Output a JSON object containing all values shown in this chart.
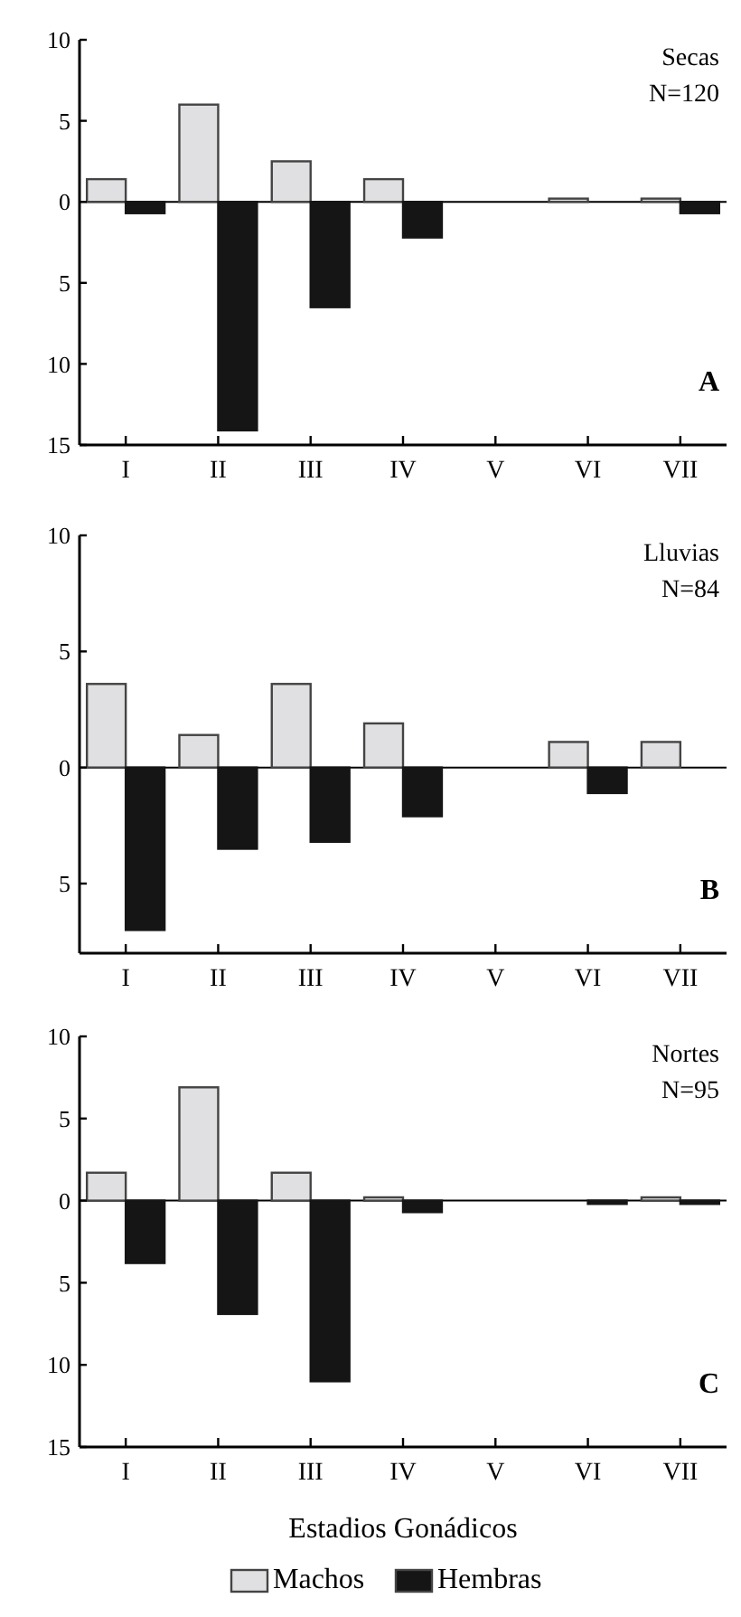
{
  "chart_data": [
    {
      "type": "bar",
      "categories": [
        "I",
        "II",
        "III",
        "IV",
        "V",
        "VI",
        "VII"
      ],
      "series": [
        {
          "color": "#e0e0e2",
          "values": [
            1.4,
            6,
            2.5,
            1.4,
            0,
            0.2,
            0.2
          ]
        },
        {
          "color": "#151515",
          "values": [
            -0.7,
            -14.1,
            -6.5,
            -2.2,
            0,
            0,
            -0.7
          ]
        }
      ],
      "ylim": [
        -15,
        10
      ],
      "yticks": [
        10,
        5,
        0,
        {
          "value": -5,
          "label": "5"
        },
        {
          "value": -10,
          "label": "10"
        },
        {
          "value": -15,
          "label": "15"
        }
      ],
      "ref_lines": [
        {
          "axis": "y",
          "value": 0,
          "color": "#000000"
        }
      ],
      "annotations": [
        "Secas",
        "N=120",
        "A"
      ],
      "legend": false
    },
    {
      "type": "bar",
      "categories": [
        "I",
        "II",
        "III",
        "IV",
        "V",
        "VI",
        "VII"
      ],
      "series": [
        {
          "color": "#e0e0e2",
          "values": [
            3.6,
            1.4,
            3.6,
            1.9,
            0,
            1.1,
            1.1
          ]
        },
        {
          "color": "#151515",
          "values": [
            -7,
            -3.5,
            -3.2,
            -2.1,
            0,
            -1.1,
            0
          ]
        }
      ],
      "ylim": [
        -8,
        10
      ],
      "yticks": [
        10,
        5,
        0,
        {
          "value": -5,
          "label": "5"
        }
      ],
      "ref_lines": [
        {
          "axis": "y",
          "value": 0,
          "color": "#000000"
        }
      ],
      "annotations": [
        "Lluvias",
        "N=84",
        "B"
      ],
      "legend": false
    },
    {
      "type": "bar",
      "categories": [
        "I",
        "II",
        "III",
        "IV",
        "V",
        "VI",
        "VII"
      ],
      "series": [
        {
          "name": "Machos",
          "color": "#e0e0e2",
          "values": [
            1.7,
            6.9,
            1.7,
            0.2,
            0,
            0,
            0.2
          ]
        },
        {
          "name": "Hembras",
          "color": "#151515",
          "values": [
            -3.8,
            -6.9,
            -11,
            -0.7,
            0,
            -0.2,
            -0.2
          ]
        }
      ],
      "ylim": [
        -15,
        10
      ],
      "yticks": [
        10,
        5,
        0,
        {
          "value": -5,
          "label": "5"
        },
        {
          "value": -10,
          "label": "10"
        },
        {
          "value": -15,
          "label": "15"
        }
      ],
      "ref_lines": [
        {
          "axis": "y",
          "value": 0,
          "color": "#000000"
        }
      ],
      "xlabel": "Estadios Gonádicos",
      "annotations": [
        "Nortes",
        "N=95",
        "C"
      ],
      "legend": "bottom"
    }
  ]
}
